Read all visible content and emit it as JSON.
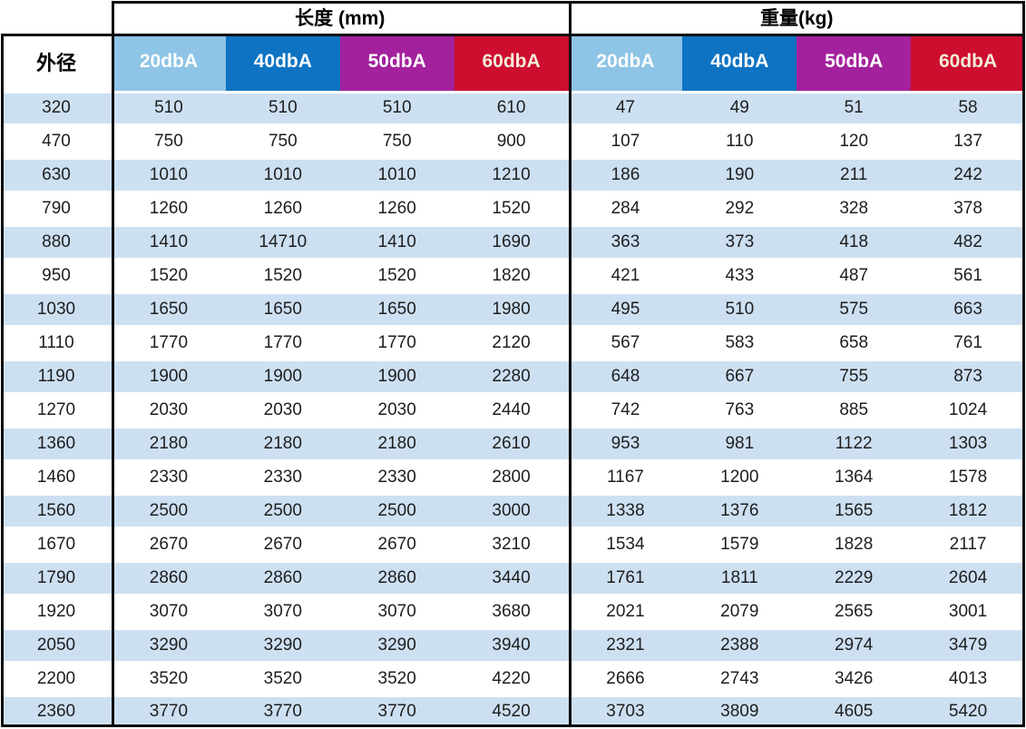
{
  "table": {
    "corner_label": "外径",
    "group_headers": [
      "长度 (mm)",
      "重量(kg)"
    ],
    "sub_headers": [
      "20dbA",
      "40dbA",
      "50dbA",
      "60dbA",
      "20dbA",
      "40dbA",
      "50dbA",
      "60dbA"
    ],
    "rows": [
      [
        "320",
        "510",
        "510",
        "510",
        "610",
        "47",
        "49",
        "51",
        "58"
      ],
      [
        "470",
        "750",
        "750",
        "750",
        "900",
        "107",
        "110",
        "120",
        "137"
      ],
      [
        "630",
        "1010",
        "1010",
        "1010",
        "1210",
        "186",
        "190",
        "211",
        "242"
      ],
      [
        "790",
        "1260",
        "1260",
        "1260",
        "1520",
        "284",
        "292",
        "328",
        "378"
      ],
      [
        "880",
        "1410",
        "14710",
        "1410",
        "1690",
        "363",
        "373",
        "418",
        "482"
      ],
      [
        "950",
        "1520",
        "1520",
        "1520",
        "1820",
        "421",
        "433",
        "487",
        "561"
      ],
      [
        "1030",
        "1650",
        "1650",
        "1650",
        "1980",
        "495",
        "510",
        "575",
        "663"
      ],
      [
        "1110",
        "1770",
        "1770",
        "1770",
        "2120",
        "567",
        "583",
        "658",
        "761"
      ],
      [
        "1190",
        "1900",
        "1900",
        "1900",
        "2280",
        "648",
        "667",
        "755",
        "873"
      ],
      [
        "1270",
        "2030",
        "2030",
        "2030",
        "2440",
        "742",
        "763",
        "885",
        "1024"
      ],
      [
        "1360",
        "2180",
        "2180",
        "2180",
        "2610",
        "953",
        "981",
        "1122",
        "1303"
      ],
      [
        "1460",
        "2330",
        "2330",
        "2330",
        "2800",
        "1167",
        "1200",
        "1364",
        "1578"
      ],
      [
        "1560",
        "2500",
        "2500",
        "2500",
        "3000",
        "1338",
        "1376",
        "1565",
        "1812"
      ],
      [
        "1670",
        "2670",
        "2670",
        "2670",
        "3210",
        "1534",
        "1579",
        "1828",
        "2117"
      ],
      [
        "1790",
        "2860",
        "2860",
        "2860",
        "3440",
        "1761",
        "1811",
        "2229",
        "2604"
      ],
      [
        "1920",
        "3070",
        "3070",
        "3070",
        "3680",
        "2021",
        "2079",
        "2565",
        "3001"
      ],
      [
        "2050",
        "3290",
        "3290",
        "3290",
        "3940",
        "2321",
        "2388",
        "2974",
        "3479"
      ],
      [
        "2200",
        "3520",
        "3520",
        "3520",
        "4220",
        "2666",
        "2743",
        "3426",
        "4013"
      ],
      [
        "2360",
        "3770",
        "3770",
        "3770",
        "4520",
        "3703",
        "3809",
        "4605",
        "5420"
      ]
    ],
    "colors": {
      "col_20dba": "#8ec4e6",
      "col_40dba": "#0d73c2",
      "col_50dba": "#a3219c",
      "col_60dba": "#cd0e2f",
      "row_stripe": "#cde0f2",
      "border": "#0e0e0e",
      "header_text": "#ffffff",
      "header_text_60dba": "#f4ebd9"
    }
  }
}
